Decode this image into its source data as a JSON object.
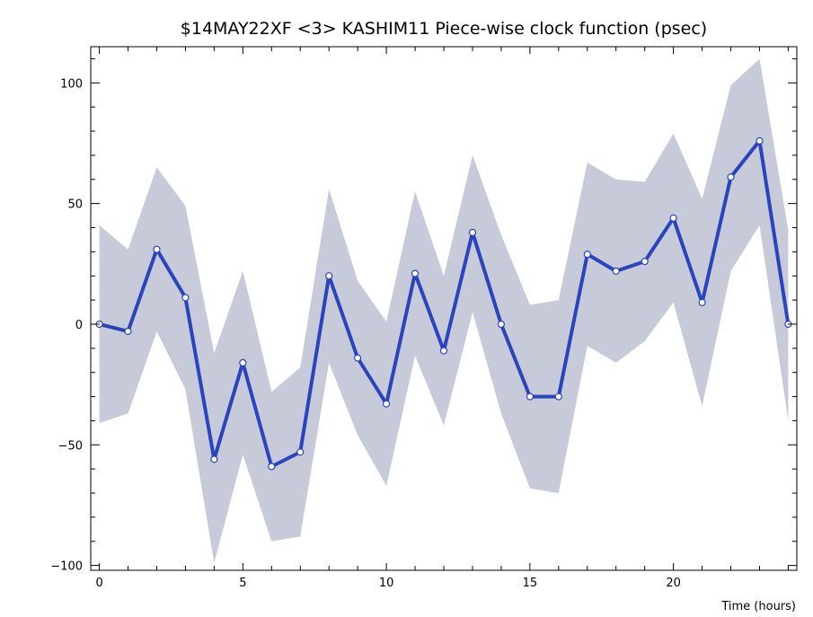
{
  "chart_data": {
    "type": "line",
    "title": "$14MAY22XF <3>   KASHIM11   Piece-wise clock function (psec)",
    "xlabel": "Time (hours)",
    "ylabel": "",
    "xlim": [
      -0.3,
      24.3
    ],
    "ylim": [
      -102,
      115
    ],
    "x_ticks": [
      0,
      5,
      10,
      15,
      20
    ],
    "y_ticks": [
      -100,
      -50,
      0,
      50,
      100
    ],
    "grid": false,
    "x": [
      0,
      1,
      2,
      3,
      4,
      5,
      6,
      7,
      8,
      9,
      10,
      11,
      12,
      13,
      14,
      15,
      16,
      17,
      18,
      19,
      20,
      21,
      22,
      23,
      24
    ],
    "series": [
      {
        "values": [
          0,
          -3,
          31,
          11,
          -56,
          -16,
          -59,
          -53,
          20,
          -14,
          -33,
          21,
          -11,
          38,
          0,
          -30,
          -30,
          29,
          22,
          26,
          44,
          9,
          61,
          76,
          0
        ],
        "color": "#2b44be"
      }
    ],
    "uncertainty_band": {
      "upper": [
        41,
        31,
        65,
        49,
        -12,
        22,
        -28,
        -18,
        56,
        18,
        1,
        55,
        20,
        70,
        37,
        8,
        10,
        67,
        60,
        59,
        79,
        52,
        99,
        110,
        39
      ],
      "lower": [
        -41,
        -37,
        -3,
        -27,
        -99,
        -54,
        -90,
        -88,
        -16,
        -46,
        -67,
        -13,
        -42,
        5,
        -37,
        -68,
        -70,
        -9,
        -16,
        -7,
        9,
        -34,
        22,
        41,
        -40
      ],
      "color": "#c6cad9"
    }
  }
}
